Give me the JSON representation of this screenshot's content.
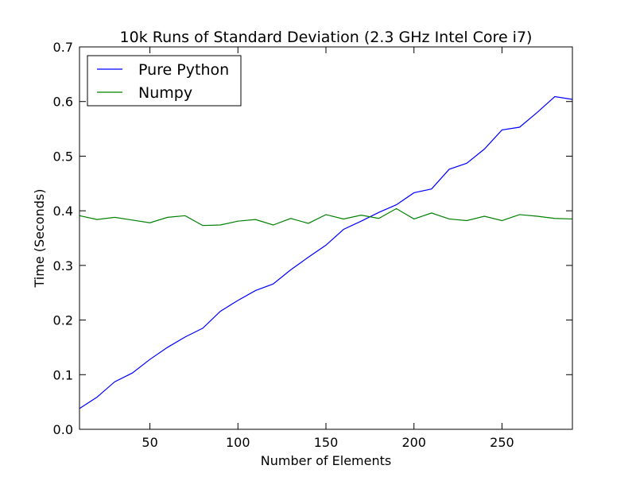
{
  "chart_data": {
    "type": "line",
    "title": "10k Runs of Standard Deviation (2.3 GHz Intel Core i7)",
    "xlabel": "Number of Elements",
    "ylabel": "Time (Seconds)",
    "xlim": [
      10,
      290
    ],
    "ylim": [
      0.0,
      0.7
    ],
    "x_ticks": [
      50,
      100,
      150,
      200,
      250
    ],
    "x_tick_labels": [
      "50",
      "100",
      "150",
      "200",
      "250"
    ],
    "y_ticks": [
      0.0,
      0.1,
      0.2,
      0.3,
      0.4,
      0.5,
      0.6,
      0.7
    ],
    "y_tick_labels": [
      "0.0",
      "0.1",
      "0.2",
      "0.3",
      "0.4",
      "0.5",
      "0.6",
      "0.7"
    ],
    "grid": false,
    "legend_position": "top-left",
    "x": [
      10,
      20,
      30,
      40,
      50,
      60,
      70,
      80,
      90,
      100,
      110,
      120,
      130,
      140,
      150,
      160,
      170,
      180,
      190,
      200,
      210,
      220,
      230,
      240,
      250,
      260,
      270,
      280,
      290
    ],
    "series": [
      {
        "name": "Pure Python",
        "color": "#0000ff",
        "values": [
          0.038,
          0.059,
          0.087,
          0.103,
          0.128,
          0.15,
          0.169,
          0.185,
          0.216,
          0.236,
          0.254,
          0.266,
          0.292,
          0.315,
          0.337,
          0.366,
          0.381,
          0.397,
          0.411,
          0.433,
          0.44,
          0.476,
          0.487,
          0.513,
          0.548,
          0.553,
          0.58,
          0.609,
          0.604
        ]
      },
      {
        "name": "Numpy",
        "color": "#008000",
        "values": [
          0.391,
          0.384,
          0.388,
          0.383,
          0.378,
          0.388,
          0.391,
          0.373,
          0.374,
          0.381,
          0.384,
          0.374,
          0.386,
          0.377,
          0.393,
          0.385,
          0.392,
          0.386,
          0.404,
          0.385,
          0.396,
          0.385,
          0.382,
          0.39,
          0.382,
          0.393,
          0.39,
          0.386,
          0.385
        ]
      }
    ]
  }
}
